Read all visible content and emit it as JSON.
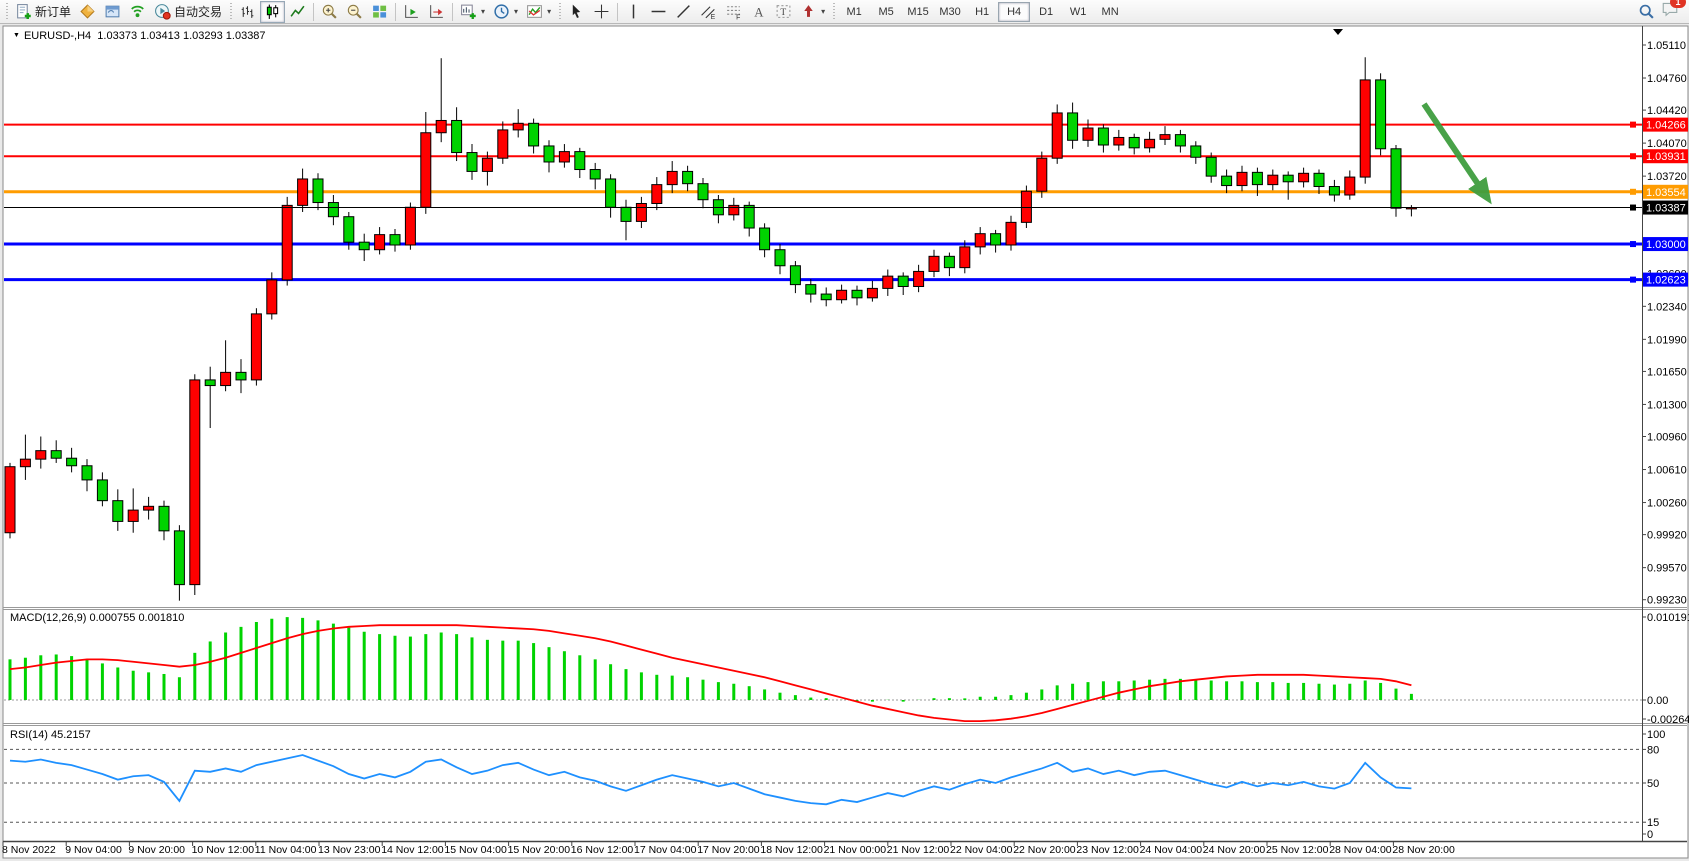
{
  "toolbar": {
    "new_order_label": "新订单",
    "autotrading_label": "自动交易",
    "timeframes": [
      "M1",
      "M5",
      "M15",
      "M30",
      "H1",
      "H4",
      "D1",
      "W1",
      "MN"
    ],
    "active_timeframe": "H4",
    "notification_badge": "1"
  },
  "chart_header": {
    "symbol": "EURUSD-,H4",
    "open": "1.03373",
    "high": "1.03413",
    "low": "1.03293",
    "close": "1.03387"
  },
  "macd_panel": {
    "name": "MACD(12,26,9)",
    "value_main": "0.000755",
    "value_signal": "0.001810"
  },
  "rsi_panel": {
    "name": "RSI(14)",
    "value": "45.2157"
  },
  "colors": {
    "bull": "#ff0000",
    "bear": "#00d300",
    "candle_outline": "#000000",
    "macd_hist": "#00d300",
    "macd_signal": "#ff0000",
    "rsi_line": "#1e90ff",
    "resistance": "#ff0000",
    "pivot": "#ff9c00",
    "support": "#0000ff",
    "current_price": "#000000",
    "arrow": "#3f9e3f"
  },
  "chart_data": [
    {
      "type": "candlestick",
      "title": "EURUSD- H4",
      "ylim": [
        0.991,
        1.0531
      ],
      "y_ticks": [
        1.0511,
        1.0476,
        1.0442,
        1.0407,
        1.0372,
        1.0337,
        1.0302,
        1.0269,
        1.0234,
        1.0199,
        1.0165,
        1.013,
        1.0096,
        1.0061,
        1.0026,
        0.9992,
        0.9957,
        0.9923
      ],
      "x_labels": [
        "8 Nov 2022",
        "9 Nov 04:00",
        "9 Nov 20:00",
        "10 Nov 12:00",
        "11 Nov 04:00",
        "13 Nov 23:00",
        "14 Nov 12:00",
        "15 Nov 04:00",
        "15 Nov 20:00",
        "16 Nov 12:00",
        "17 Nov 04:00",
        "17 Nov 20:00",
        "18 Nov 12:00",
        "21 Nov 00:00",
        "21 Nov 12:00",
        "22 Nov 04:00",
        "22 Nov 20:00",
        "23 Nov 12:00",
        "24 Nov 04:00",
        "24 Nov 20:00",
        "25 Nov 12:00",
        "28 Nov 04:00",
        "28 Nov 20:00"
      ],
      "hlines": [
        {
          "price": 1.04266,
          "role": "resistance",
          "color": "#ff0000",
          "width": 2
        },
        {
          "price": 1.03931,
          "role": "resistance",
          "color": "#ff0000",
          "width": 2
        },
        {
          "price": 1.03554,
          "role": "pivot",
          "color": "#ff9c00",
          "width": 3
        },
        {
          "price": 1.03,
          "role": "support",
          "color": "#0000ff",
          "width": 3
        },
        {
          "price": 1.02623,
          "role": "support",
          "color": "#0000ff",
          "width": 3
        }
      ],
      "current_price": 1.03387,
      "ohlc": [
        [
          0.9994,
          1.0068,
          0.9988,
          1.0064
        ],
        [
          1.0064,
          1.0098,
          1.005,
          1.0072
        ],
        [
          1.0072,
          1.0096,
          1.0062,
          1.0081
        ],
        [
          1.0081,
          1.0092,
          1.0068,
          1.0073
        ],
        [
          1.0073,
          1.0084,
          1.0058,
          1.0065
        ],
        [
          1.0065,
          1.0072,
          1.0038,
          1.005
        ],
        [
          1.005,
          1.0058,
          1.0022,
          1.0028
        ],
        [
          1.0028,
          1.004,
          0.9996,
          1.0006
        ],
        [
          1.0006,
          1.0041,
          0.9994,
          1.0018
        ],
        [
          1.0018,
          1.0032,
          1.0008,
          1.0022
        ],
        [
          1.0022,
          1.0028,
          0.9986,
          0.9996
        ],
        [
          0.9996,
          1.0002,
          0.9922,
          0.9939
        ],
        [
          0.9939,
          1.0162,
          0.9928,
          1.0156
        ],
        [
          1.0156,
          1.017,
          1.0105,
          1.015
        ],
        [
          1.015,
          1.0198,
          1.0144,
          1.0164
        ],
        [
          1.0164,
          1.0178,
          1.0142,
          1.0156
        ],
        [
          1.0156,
          1.0232,
          1.015,
          1.0226
        ],
        [
          1.0226,
          1.027,
          1.022,
          1.0262
        ],
        [
          1.0262,
          1.035,
          1.0256,
          1.0341
        ],
        [
          1.0341,
          1.038,
          1.0334,
          1.0369
        ],
        [
          1.0369,
          1.0375,
          1.0336,
          1.0344
        ],
        [
          1.0344,
          1.0352,
          1.032,
          1.0329
        ],
        [
          1.0329,
          1.0334,
          1.0294,
          1.0302
        ],
        [
          1.0302,
          1.0311,
          1.0282,
          1.0294
        ],
        [
          1.0294,
          1.0318,
          1.0289,
          1.031
        ],
        [
          1.031,
          1.0316,
          1.0292,
          1.0299
        ],
        [
          1.0299,
          1.0344,
          1.0294,
          1.0339
        ],
        [
          1.0339,
          1.044,
          1.0332,
          1.0418
        ],
        [
          1.0418,
          1.0497,
          1.0408,
          1.0431
        ],
        [
          1.0431,
          1.0445,
          1.0388,
          1.0397
        ],
        [
          1.0397,
          1.0406,
          1.0368,
          1.0377
        ],
        [
          1.0377,
          1.0398,
          1.0362,
          1.0391
        ],
        [
          1.0391,
          1.043,
          1.0385,
          1.0421
        ],
        [
          1.0421,
          1.0443,
          1.0413,
          1.0428
        ],
        [
          1.0428,
          1.0433,
          1.0396,
          1.0404
        ],
        [
          1.0404,
          1.041,
          1.0376,
          1.0387
        ],
        [
          1.0387,
          1.0406,
          1.0381,
          1.0398
        ],
        [
          1.0398,
          1.0402,
          1.037,
          1.0379
        ],
        [
          1.0379,
          1.0386,
          1.0358,
          1.0369
        ],
        [
          1.0369,
          1.0374,
          1.0328,
          1.0339
        ],
        [
          1.0339,
          1.0347,
          1.0304,
          1.0324
        ],
        [
          1.0324,
          1.035,
          1.0317,
          1.0343
        ],
        [
          1.0343,
          1.0371,
          1.0336,
          1.0363
        ],
        [
          1.0363,
          1.0388,
          1.0354,
          1.0377
        ],
        [
          1.0377,
          1.0383,
          1.0356,
          1.0364
        ],
        [
          1.0364,
          1.037,
          1.0338,
          1.0347
        ],
        [
          1.0347,
          1.0352,
          1.0322,
          1.0331
        ],
        [
          1.0331,
          1.0349,
          1.0325,
          1.0341
        ],
        [
          1.0341,
          1.0345,
          1.0308,
          1.0317
        ],
        [
          1.0317,
          1.0322,
          1.0286,
          1.0294
        ],
        [
          1.0294,
          1.03,
          1.0268,
          1.0277
        ],
        [
          1.0277,
          1.0282,
          1.0248,
          1.0257
        ],
        [
          1.0257,
          1.0263,
          1.0238,
          1.0247
        ],
        [
          1.0247,
          1.0254,
          1.0234,
          1.0241
        ],
        [
          1.0241,
          1.0257,
          1.0237,
          1.0251
        ],
        [
          1.0251,
          1.0256,
          1.0235,
          1.0243
        ],
        [
          1.0243,
          1.0261,
          1.0239,
          1.0253
        ],
        [
          1.0253,
          1.0273,
          1.0245,
          1.0266
        ],
        [
          1.0266,
          1.027,
          1.0246,
          1.0255
        ],
        [
          1.0255,
          1.0278,
          1.0249,
          1.0271
        ],
        [
          1.0271,
          1.0294,
          1.0265,
          1.0287
        ],
        [
          1.0287,
          1.0291,
          1.0266,
          1.0275
        ],
        [
          1.0275,
          1.0304,
          1.0269,
          1.0297
        ],
        [
          1.0297,
          1.0318,
          1.0289,
          1.0311
        ],
        [
          1.0311,
          1.0315,
          1.0291,
          1.0299
        ],
        [
          1.0299,
          1.033,
          1.0293,
          1.0323
        ],
        [
          1.0323,
          1.0362,
          1.0317,
          1.0356
        ],
        [
          1.0356,
          1.0398,
          1.0349,
          1.0391
        ],
        [
          1.0391,
          1.0448,
          1.0385,
          1.0439
        ],
        [
          1.0439,
          1.045,
          1.0401,
          1.041
        ],
        [
          1.041,
          1.0432,
          1.0403,
          1.0423
        ],
        [
          1.0423,
          1.0427,
          1.0397,
          1.0405
        ],
        [
          1.0405,
          1.0421,
          1.0399,
          1.0413
        ],
        [
          1.0413,
          1.0417,
          1.0395,
          1.0402
        ],
        [
          1.0402,
          1.0419,
          1.0397,
          1.0411
        ],
        [
          1.0411,
          1.0425,
          1.0405,
          1.0416
        ],
        [
          1.0416,
          1.0421,
          1.0397,
          1.0404
        ],
        [
          1.0404,
          1.0409,
          1.0385,
          1.0392
        ],
        [
          1.0392,
          1.0397,
          1.0365,
          1.0372
        ],
        [
          1.0372,
          1.0379,
          1.0354,
          1.0362
        ],
        [
          1.0362,
          1.0383,
          1.0356,
          1.0376
        ],
        [
          1.0376,
          1.0381,
          1.0351,
          1.0363
        ],
        [
          1.0363,
          1.0379,
          1.0357,
          1.0373
        ],
        [
          1.0373,
          1.0377,
          1.0347,
          1.0366
        ],
        [
          1.0366,
          1.0381,
          1.036,
          1.0375
        ],
        [
          1.0375,
          1.0379,
          1.0353,
          1.0361
        ],
        [
          1.0361,
          1.0368,
          1.0345,
          1.0352
        ],
        [
          1.0352,
          1.0378,
          1.0347,
          1.0371
        ],
        [
          1.0371,
          1.0498,
          1.0364,
          1.0474
        ],
        [
          1.0474,
          1.0481,
          1.0394,
          1.0401
        ],
        [
          1.0401,
          1.0405,
          1.0329,
          1.0338
        ],
        [
          1.03373,
          1.03413,
          1.03293,
          1.03387
        ]
      ]
    },
    {
      "type": "macd",
      "label": "MACD(12,26,9)",
      "current_main": 0.000755,
      "current_signal": 0.00181,
      "y_ticks": [
        "0.010191",
        "0.00",
        "-0.002642"
      ],
      "histogram": [
        0.005,
        0.0052,
        0.0055,
        0.0056,
        0.0054,
        0.005,
        0.0045,
        0.004,
        0.0036,
        0.0034,
        0.0032,
        0.0028,
        0.0058,
        0.0072,
        0.0083,
        0.009,
        0.0096,
        0.01,
        0.0102,
        0.0101,
        0.0098,
        0.0094,
        0.0089,
        0.0084,
        0.0081,
        0.0079,
        0.0078,
        0.0081,
        0.0083,
        0.0081,
        0.0077,
        0.0074,
        0.0073,
        0.0073,
        0.007,
        0.0065,
        0.006,
        0.0055,
        0.005,
        0.0044,
        0.0038,
        0.0034,
        0.0031,
        0.003,
        0.0028,
        0.0025,
        0.0022,
        0.002,
        0.0017,
        0.0013,
        0.0009,
        0.0006,
        0.0003,
        0.0001,
        -0.0001,
        -0.0002,
        -0.0002,
        -0.0001,
        -0.0002,
        -0.0001,
        0.0001,
        0.0001,
        0.0002,
        0.0004,
        0.0004,
        0.0006,
        0.0009,
        0.0013,
        0.0018,
        0.002,
        0.0022,
        0.0023,
        0.0023,
        0.0024,
        0.0025,
        0.0026,
        0.0026,
        0.0025,
        0.0024,
        0.0023,
        0.0023,
        0.0022,
        0.0022,
        0.0021,
        0.0021,
        0.002,
        0.0019,
        0.002,
        0.0024,
        0.0021,
        0.0014,
        0.000755
      ],
      "signal": [
        0.0038,
        0.004,
        0.0043,
        0.0046,
        0.0048,
        0.005,
        0.005,
        0.0049,
        0.0047,
        0.0045,
        0.0043,
        0.0041,
        0.0043,
        0.0047,
        0.0052,
        0.0058,
        0.0064,
        0.007,
        0.0076,
        0.0081,
        0.0085,
        0.0088,
        0.009,
        0.0091,
        0.0092,
        0.0092,
        0.0092,
        0.0092,
        0.0092,
        0.0092,
        0.0091,
        0.009,
        0.0089,
        0.0088,
        0.0087,
        0.0085,
        0.0082,
        0.0079,
        0.0076,
        0.0072,
        0.0067,
        0.0062,
        0.0057,
        0.0052,
        0.0048,
        0.0044,
        0.004,
        0.0036,
        0.0032,
        0.0028,
        0.0023,
        0.0018,
        0.0013,
        0.0008,
        0.0003,
        -0.0002,
        -0.0007,
        -0.0011,
        -0.0015,
        -0.0019,
        -0.0022,
        -0.0024,
        -0.0026,
        -0.0026,
        -0.0025,
        -0.0023,
        -0.002,
        -0.0016,
        -0.0011,
        -0.0006,
        -0.0001,
        0.0004,
        0.0009,
        0.0013,
        0.0017,
        0.002,
        0.0023,
        0.0025,
        0.0027,
        0.0029,
        0.003,
        0.0031,
        0.0031,
        0.0031,
        0.0031,
        0.003,
        0.0029,
        0.0028,
        0.0027,
        0.0026,
        0.0023,
        0.00181
      ]
    },
    {
      "type": "rsi",
      "label": "RSI(14)",
      "current": 45.2157,
      "range": [
        0,
        100
      ],
      "levels": [
        80,
        50,
        15
      ],
      "y_ticks": [
        "100",
        "80",
        "50",
        "15",
        "0"
      ],
      "series": [
        70,
        69,
        71,
        68,
        66,
        62,
        58,
        53,
        56,
        57,
        51,
        34,
        61,
        60,
        63,
        60,
        66,
        69,
        72,
        75,
        70,
        65,
        58,
        54,
        58,
        55,
        60,
        69,
        71,
        64,
        58,
        61,
        66,
        68,
        62,
        57,
        60,
        55,
        52,
        47,
        43,
        48,
        53,
        57,
        54,
        51,
        47,
        50,
        45,
        40,
        37,
        34,
        32,
        31,
        35,
        33,
        37,
        41,
        38,
        43,
        47,
        44,
        49,
        53,
        50,
        55,
        59,
        63,
        68,
        60,
        63,
        58,
        61,
        57,
        60,
        61,
        57,
        53,
        49,
        46,
        51,
        47,
        50,
        48,
        51,
        47,
        45,
        50,
        68,
        55,
        46,
        45.2157
      ]
    }
  ],
  "annotations": {
    "sell_arrow": {
      "from": [
        1424,
        104
      ],
      "to": [
        1480,
        187
      ],
      "color": "#3f9e3f"
    }
  }
}
